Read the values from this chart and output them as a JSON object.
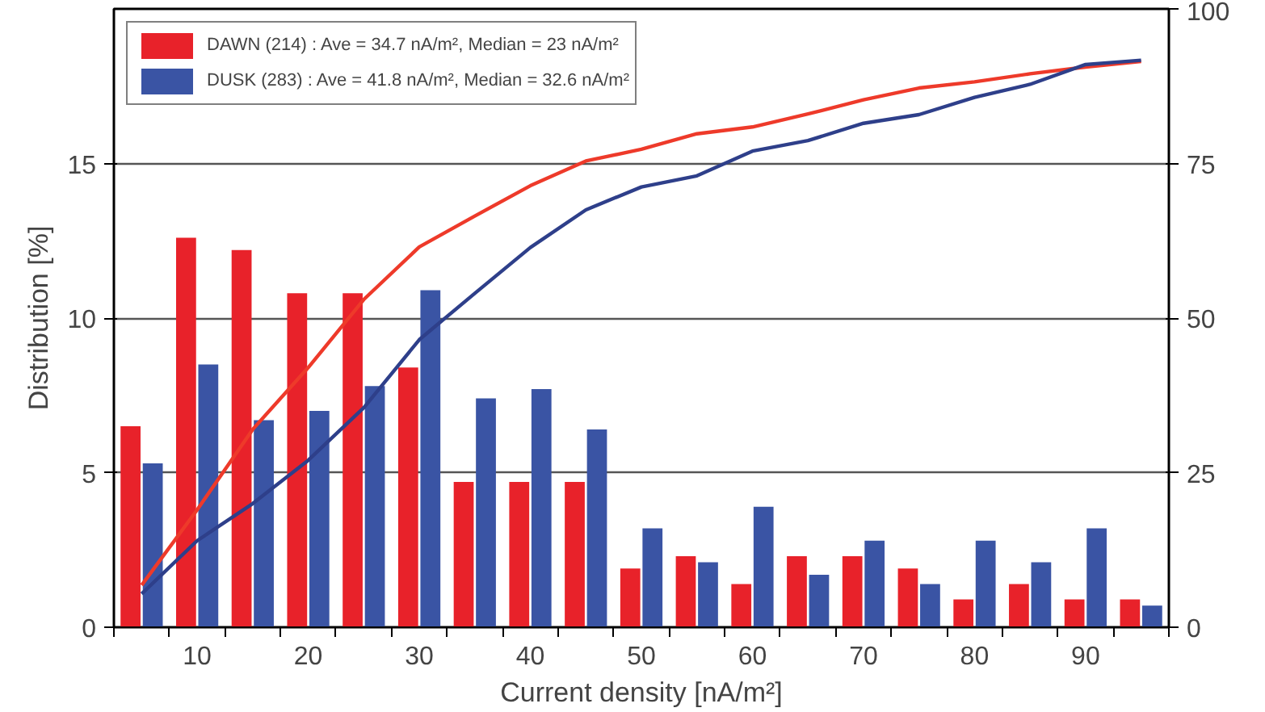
{
  "chart_data": {
    "type": "bar",
    "xlabel": "Current density [nA/m²]",
    "ylabel": "Distribution [%]",
    "categories": [
      null,
      "10",
      null,
      "20",
      null,
      "30",
      null,
      "40",
      null,
      "50",
      null,
      "60",
      null,
      "70",
      null,
      "80",
      null,
      "90",
      null
    ],
    "series": [
      {
        "name": "DAWN (214) : Ave = 34.7 nA/m², Median = 23 nA/m²",
        "color": "#e8222a",
        "values": [
          6.5,
          12.6,
          12.2,
          10.8,
          10.8,
          8.4,
          4.7,
          4.7,
          4.7,
          1.9,
          2.3,
          1.4,
          2.3,
          2.3,
          1.9,
          0.9,
          1.4,
          0.9,
          0.9
        ]
      },
      {
        "name": "DUSK (283) : Ave = 41.8 nA/m², Median = 32.6 nA/m²",
        "color": "#3a54a4",
        "values": [
          5.3,
          8.5,
          6.7,
          7.0,
          7.8,
          10.9,
          7.4,
          7.7,
          6.4,
          3.2,
          2.1,
          3.9,
          1.7,
          2.8,
          1.4,
          2.8,
          2.1,
          3.2,
          0.7
        ]
      },
      {
        "type": "line",
        "axis": "y2",
        "color": "#ee3a2a",
        "values": [
          6.8,
          19,
          32,
          42,
          53,
          61.5,
          66.5,
          71.4,
          75.4,
          77.3,
          79.8,
          80.9,
          83,
          85.3,
          87.2,
          88.2,
          89.5,
          90.6,
          91.5
        ]
      },
      {
        "type": "line",
        "axis": "y2",
        "color": "#2e3f8a",
        "values": [
          5.4,
          14,
          20,
          27,
          35.5,
          46.5,
          54,
          61.4,
          67.5,
          71.2,
          73,
          77,
          78.7,
          81.5,
          82.9,
          85.7,
          87.8,
          91,
          91.7
        ]
      }
    ],
    "ylim": [
      0,
      20
    ],
    "yticks": [
      0,
      5,
      10,
      15
    ],
    "y2lim": [
      0,
      100
    ],
    "y2ticks": [
      0,
      25,
      50,
      75,
      100
    ],
    "grid": "y",
    "legend": "top left"
  }
}
